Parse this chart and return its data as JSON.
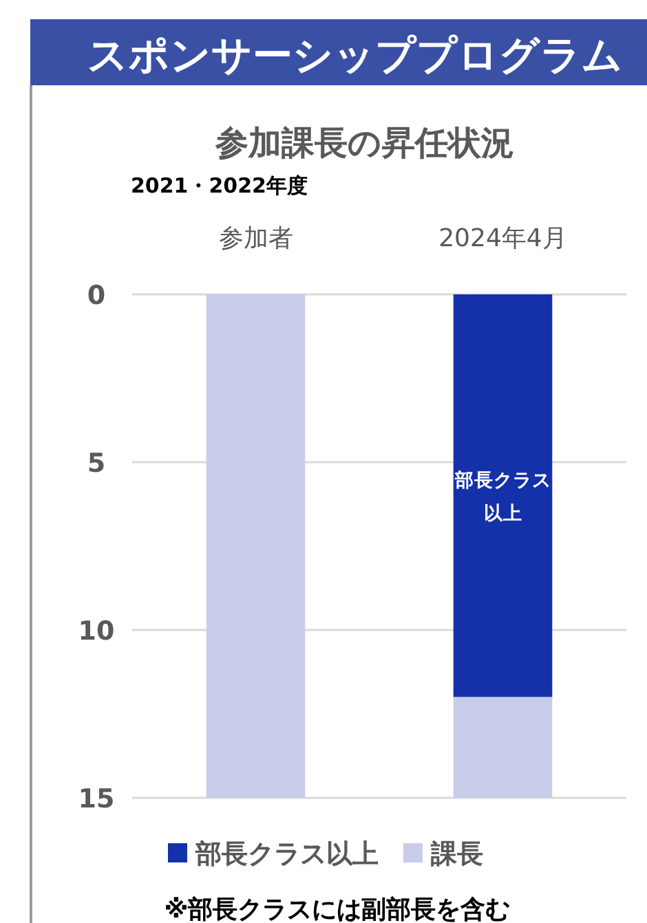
{
  "chart_data": {
    "type": "bar",
    "title": "スポンサーシッププログラム",
    "subtitle": "参加課長の昇任状況",
    "categories": [
      "参加者",
      "2024年4月"
    ],
    "series": [
      {
        "name": "部長クラス以上",
        "color": "#1531aa",
        "values": [
          0,
          12
        ]
      },
      {
        "name": "課長",
        "color": "#c7cde9",
        "values": [
          15,
          3
        ]
      }
    ],
    "stacked": true,
    "ylim": [
      15,
      0
    ],
    "yticks": [
      0,
      5,
      10,
      15
    ],
    "grid": "y",
    "legend": "bottom",
    "annotations": [
      "2021・2022年度",
      "部長クラス以上",
      "※部長クラスには副部長を含む"
    ]
  }
}
